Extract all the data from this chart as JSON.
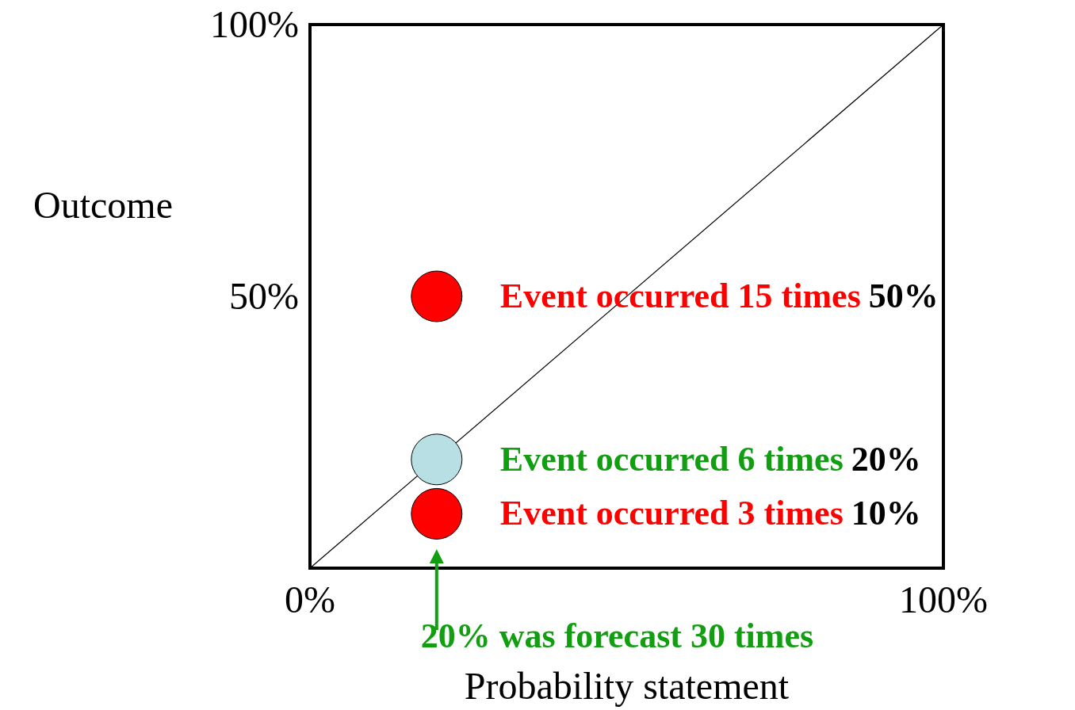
{
  "chart_data": {
    "type": "scatter",
    "xlabel": "Probability statement",
    "ylabel": "Outcome",
    "xlim": [
      0,
      100
    ],
    "ylim": [
      0,
      100
    ],
    "xticks": [
      {
        "value": 0,
        "label": "0%"
      },
      {
        "value": 100,
        "label": "100%"
      }
    ],
    "yticks": [
      {
        "value": 50,
        "label": "50%"
      },
      {
        "value": 100,
        "label": "100%"
      }
    ],
    "grid": false,
    "marker": "circle",
    "series": [
      {
        "type": "line",
        "x": [
          0,
          100
        ],
        "values": [
          0,
          100
        ],
        "color": "#000000",
        "line_style": "solid",
        "marker": "none"
      },
      {
        "x": [
          20,
          20,
          20
        ],
        "values": [
          50,
          20,
          10
        ],
        "colors": [
          "#ff0000",
          "#b8dfe3",
          "#ff0000"
        ]
      }
    ],
    "annotations": [
      "Event occurred 15 times",
      "50%",
      "Event occurred 6 times",
      "20%",
      "Event occurred 3 times",
      "10%",
      "20% was forecast 30 times"
    ]
  }
}
